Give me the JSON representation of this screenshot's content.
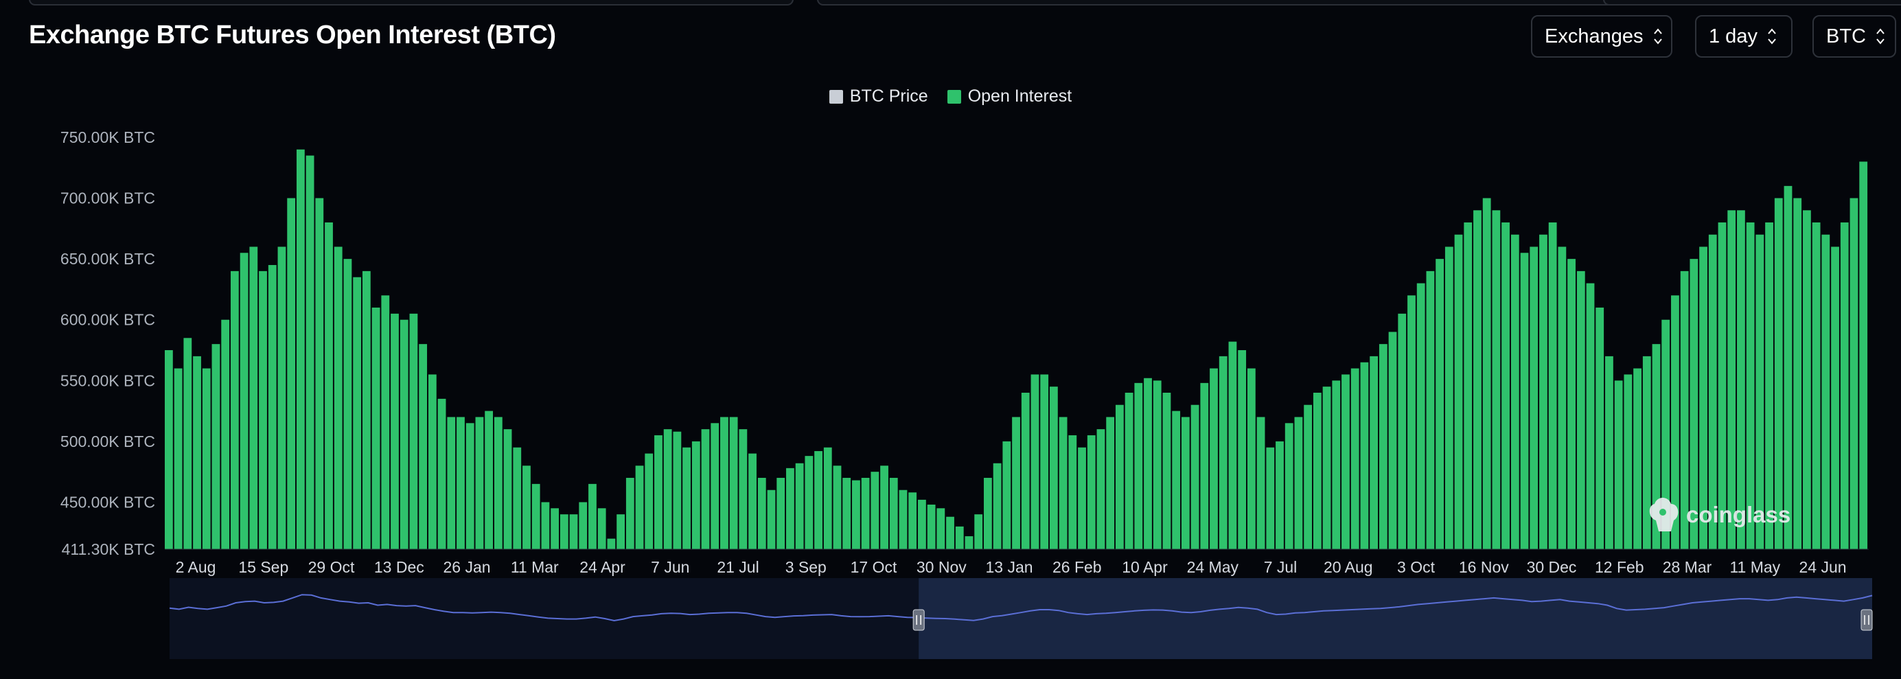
{
  "header": {
    "title": "Exchange BTC Futures Open Interest (BTC)",
    "controls": [
      {
        "label": "Exchanges"
      },
      {
        "label": "1 day"
      },
      {
        "label": "BTC"
      }
    ]
  },
  "legend": [
    {
      "label": "BTC Price",
      "color": "#c9ced6"
    },
    {
      "label": "Open Interest",
      "color": "#2fc26c"
    }
  ],
  "watermark": {
    "text": "coinglass"
  },
  "navigator": {
    "selection_start_fraction": 0.44,
    "selection_end_fraction": 1.0
  },
  "chart_data": {
    "type": "bar",
    "title": "Exchange BTC Futures Open Interest (BTC)",
    "ylabel": "",
    "unit": "BTC",
    "ylim": [
      411300,
      750000
    ],
    "y_ticks": [
      "750.00K BTC",
      "700.00K BTC",
      "650.00K BTC",
      "600.00K BTC",
      "550.00K BTC",
      "500.00K BTC",
      "450.00K BTC",
      "411.30K BTC"
    ],
    "y_tick_values": [
      750000,
      700000,
      650000,
      600000,
      550000,
      500000,
      450000,
      411300
    ],
    "x_ticks": [
      "2 Aug",
      "15 Sep",
      "29 Oct",
      "13 Dec",
      "26 Jan",
      "11 Mar",
      "24 Apr",
      "7 Jun",
      "21 Jul",
      "3 Sep",
      "17 Oct",
      "30 Nov",
      "13 Jan",
      "26 Feb",
      "10 Apr",
      "24 May",
      "7 Jul",
      "20 Aug",
      "3 Oct",
      "16 Nov",
      "30 Dec",
      "12 Feb",
      "28 Mar",
      "11 May",
      "24 Jun"
    ],
    "grid": false,
    "legend_position": "top-center",
    "series": [
      {
        "name": "Open Interest",
        "color": "#2fc26c",
        "values": [
          575000,
          560000,
          585000,
          570000,
          560000,
          580000,
          600000,
          640000,
          655000,
          660000,
          640000,
          645000,
          660000,
          700000,
          740000,
          735000,
          700000,
          680000,
          660000,
          650000,
          635000,
          640000,
          610000,
          620000,
          605000,
          600000,
          605000,
          580000,
          555000,
          535000,
          520000,
          520000,
          515000,
          520000,
          525000,
          520000,
          510000,
          495000,
          480000,
          465000,
          450000,
          445000,
          440000,
          440000,
          450000,
          465000,
          445000,
          420000,
          440000,
          470000,
          480000,
          490000,
          505000,
          510000,
          508000,
          495000,
          500000,
          510000,
          515000,
          520000,
          520000,
          510000,
          490000,
          470000,
          460000,
          470000,
          478000,
          482000,
          488000,
          492000,
          495000,
          480000,
          470000,
          468000,
          470000,
          475000,
          480000,
          470000,
          460000,
          458000,
          452000,
          448000,
          445000,
          438000,
          430000,
          422000,
          440000,
          470000,
          482000,
          500000,
          520000,
          540000,
          555000,
          555000,
          545000,
          520000,
          505000,
          495000,
          505000,
          510000,
          520000,
          530000,
          540000,
          548000,
          552000,
          550000,
          540000,
          525000,
          520000,
          530000,
          548000,
          560000,
          570000,
          582000,
          575000,
          560000,
          520000,
          495000,
          500000,
          515000,
          520000,
          530000,
          540000,
          545000,
          550000,
          555000,
          560000,
          565000,
          570000,
          580000,
          590000,
          605000,
          620000,
          630000,
          640000,
          650000,
          660000,
          670000,
          680000,
          690000,
          700000,
          690000,
          680000,
          670000,
          655000,
          660000,
          670000,
          680000,
          660000,
          650000,
          640000,
          630000,
          610000,
          570000,
          550000,
          555000,
          560000,
          570000,
          580000,
          600000,
          620000,
          640000,
          650000,
          660000,
          670000,
          680000,
          690000,
          690000,
          680000,
          670000,
          680000,
          700000,
          710000,
          700000,
          690000,
          680000,
          670000,
          660000,
          680000,
          700000,
          730000
        ]
      }
    ],
    "secondary_series": [
      {
        "name": "BTC Price",
        "color": "#c9ced6",
        "shown_in_chart": false
      }
    ]
  }
}
